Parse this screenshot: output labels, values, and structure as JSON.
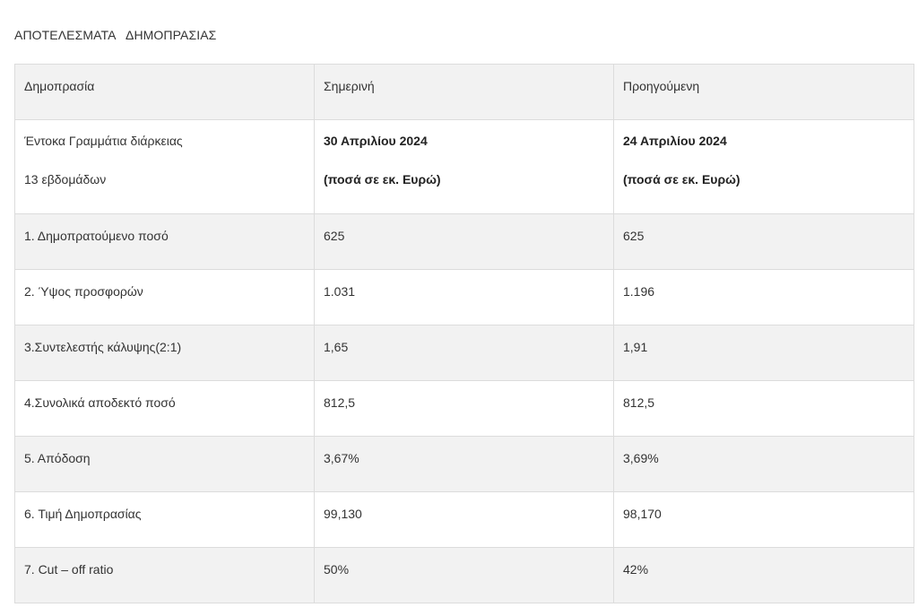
{
  "title": "ΑΠΟΤΕΛΕΣΜΑΤΑ   ΔΗΜΟΠΡΑΣΙΑΣ",
  "header": {
    "col1": "Δημοπρασία",
    "col2": "Σημερινή",
    "col3": "Προηγούμενη"
  },
  "subheader": {
    "col1_line1": "Έντοκα Γραμμάτια διάρκειας",
    "col1_line2": "13 εβδομάδων",
    "col2_line1": "30 Απριλίου 2024",
    "col2_line2": "(ποσά σε εκ. Ευρώ)",
    "col3_line1": "24 Απριλίου 2024",
    "col3_line2": "(ποσά σε εκ. Ευρώ)"
  },
  "rows": [
    {
      "label": "1. Δημοπρατούμενο ποσό",
      "current": "625",
      "previous": "625"
    },
    {
      "label": "2. Ύψος προσφορών",
      "current": "1.031",
      "previous": "1.196"
    },
    {
      "label": "3.Συντελεστής κάλυψης(2:1)",
      "current": "1,65",
      "previous": "1,91"
    },
    {
      "label": "4.Συνολικά αποδεκτό ποσό",
      "current": "812,5",
      "previous": "812,5"
    },
    {
      "label": "5. Απόδοση",
      "current": "3,67%",
      "previous": "3,69%"
    },
    {
      "label": "6. Τιμή Δημοπρασίας",
      "current": "99,130",
      "previous": "98,170"
    },
    {
      "label": "7. Cut – off ratio",
      "current": "50%",
      "previous": "42%"
    }
  ]
}
